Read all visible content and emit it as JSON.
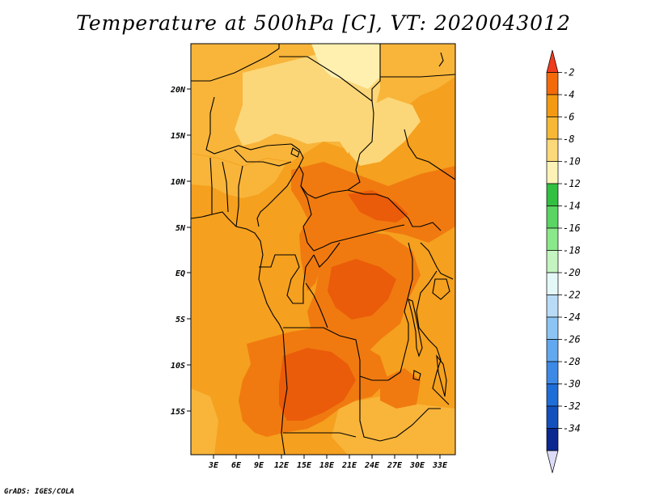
{
  "title": "Temperature at 500hPa [C], VT: 2020043012",
  "credit": "GrADS: IGES/COLA",
  "map": {
    "variable": "Temperature at 500hPa",
    "units": "C",
    "lat_labels": [
      "20N",
      "15N",
      "10N",
      "5N",
      "EQ",
      "5S",
      "10S",
      "15S"
    ],
    "lon_labels": [
      "3E",
      "6E",
      "9E",
      "12E",
      "15E",
      "18E",
      "21E",
      "24E",
      "27E",
      "30E",
      "33E"
    ]
  },
  "colorbar": {
    "labels": [
      "-2",
      "-4",
      "-6",
      "-8",
      "-10",
      "-12",
      "-14",
      "-16",
      "-18",
      "-20",
      "-22",
      "-24",
      "-26",
      "-28",
      "-30",
      "-32",
      "-34"
    ],
    "colors": [
      "#f03c1e",
      "#f46a0a",
      "#f49a12",
      "#f7b836",
      "#fbd878",
      "#fff2b6",
      "#32c040",
      "#5ad462",
      "#8ae88a",
      "#c4f4c0",
      "#e4f8f8",
      "#b8dcf8",
      "#8cc4f4",
      "#62a8f0",
      "#3c8ae6",
      "#1e6ed8",
      "#1250bc",
      "#0a2890",
      "#dcdcf8"
    ]
  },
  "colors": {
    "tm10": "#fff0b0",
    "tm8": "#fcd779",
    "tm6": "#f8b53a",
    "tm4": "#f5a01e",
    "tm3": "#f07a10",
    "tm2": "#ea5c0a",
    "border": "#000000"
  }
}
